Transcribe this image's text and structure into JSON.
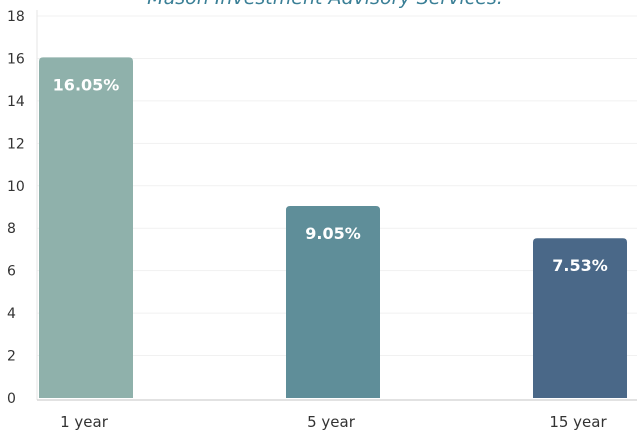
{
  "chart_data": {
    "type": "bar",
    "title": "Mason Investment Advisory Services.",
    "categories": [
      "1 year",
      "5 year",
      "15 year"
    ],
    "values": [
      16.05,
      9.05,
      7.53
    ],
    "data_labels": [
      "16.05%",
      "9.05%",
      "7.53%"
    ],
    "ylim": [
      0,
      18
    ],
    "yticks": [
      0,
      2,
      4,
      6,
      8,
      10,
      12,
      14,
      16,
      18
    ],
    "xlabel": "",
    "ylabel": "",
    "grid": true,
    "bar_colors": [
      "#8fb1ab",
      "#5f8e99",
      "#4a6888"
    ]
  }
}
